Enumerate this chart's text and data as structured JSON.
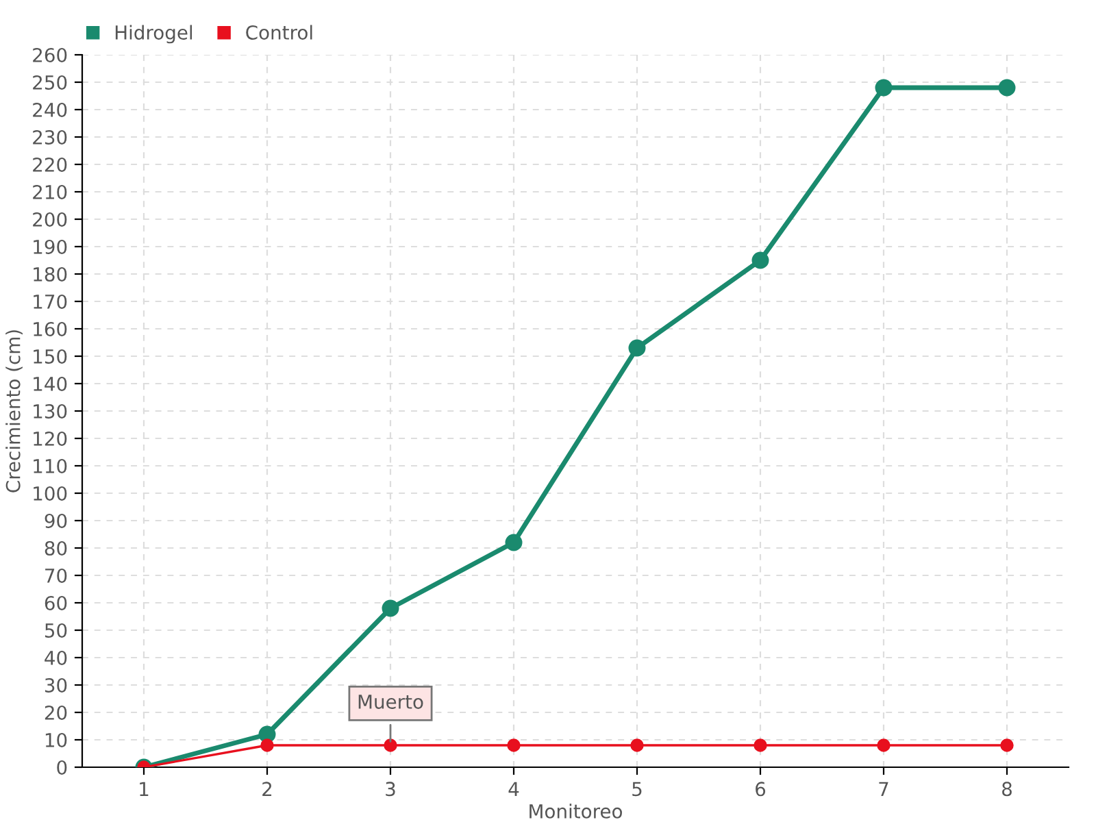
{
  "chart_data": {
    "type": "line",
    "xlabel": "Monitoreo",
    "ylabel": "Crecimiento (cm)",
    "x": [
      1,
      2,
      3,
      4,
      5,
      6,
      7,
      8
    ],
    "series": [
      {
        "name": "Hidrogel",
        "color": "#1a8a6e",
        "values": [
          0,
          12,
          58,
          82,
          153,
          185,
          248,
          248
        ]
      },
      {
        "name": "Control",
        "color": "#e8101e",
        "values": [
          0,
          8,
          8,
          8,
          8,
          8,
          8,
          8
        ]
      }
    ],
    "annotations": [
      {
        "text": "Muerto",
        "x": 3,
        "y": 8
      }
    ],
    "xlim": [
      0.5,
      8.5
    ],
    "xticks": [
      1,
      2,
      3,
      4,
      5,
      6,
      7,
      8
    ],
    "ylim": [
      0,
      260
    ],
    "yticks": [
      0,
      10,
      20,
      30,
      40,
      50,
      60,
      70,
      80,
      90,
      100,
      110,
      120,
      130,
      140,
      150,
      160,
      170,
      180,
      190,
      200,
      210,
      220,
      230,
      240,
      250,
      260
    ],
    "grid": true,
    "legend": "top left",
    "marker": "circle",
    "line_style": "solid"
  }
}
